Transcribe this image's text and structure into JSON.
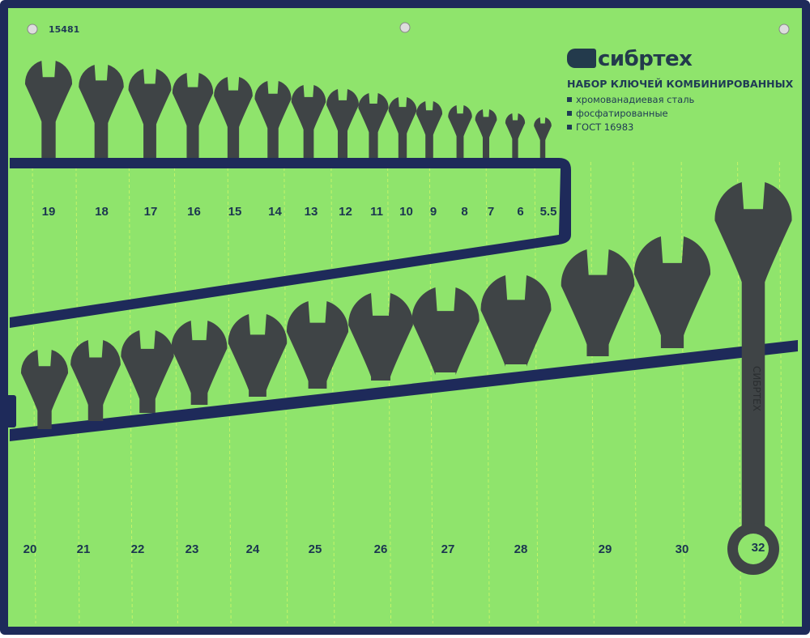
{
  "product": {
    "article": "15481",
    "brand": "сибртех",
    "title": "НАБОР КЛЮЧЕЙ КОМБИНИРОВАННЫХ",
    "features": [
      "хромованадиевая сталь",
      "фосфатированные",
      "ГОСТ 16983"
    ]
  },
  "top_row_sizes": [
    "19",
    "18",
    "17",
    "16",
    "15",
    "14",
    "13",
    "12",
    "11",
    "10",
    "9",
    "8",
    "7",
    "6",
    "5.5"
  ],
  "bottom_row_sizes": [
    "20",
    "21",
    "22",
    "23",
    "24",
    "25",
    "26",
    "27",
    "28",
    "29",
    "30"
  ],
  "large_wrench": {
    "size": "32",
    "marking": "СИБРТЕХ"
  },
  "colors": {
    "fabric": "#8fe46c",
    "border": "#1e2a5a",
    "steel": "#3f4446",
    "stitch": "#e6ff6a"
  }
}
